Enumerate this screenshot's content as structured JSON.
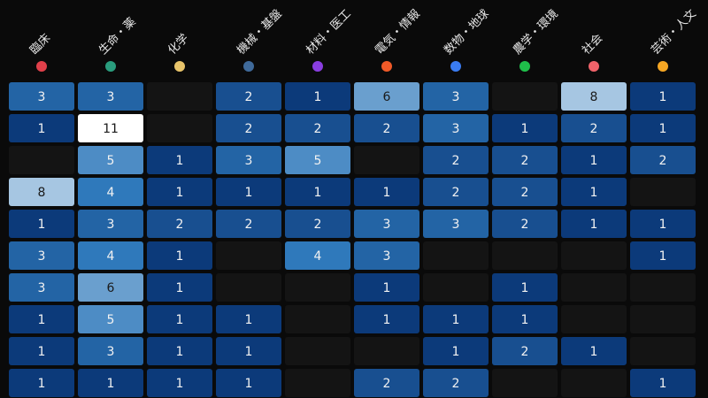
{
  "chart_data": {
    "type": "heatmap",
    "columns": [
      {
        "label": "臨床",
        "color": "#e0404a"
      },
      {
        "label": "生命・薬",
        "color": "#2a9d7e"
      },
      {
        "label": "化学",
        "color": "#e8c46a"
      },
      {
        "label": "機械・基盤",
        "color": "#3f6a9a"
      },
      {
        "label": "材料・医工",
        "color": "#8a3ee0"
      },
      {
        "label": "電気・情報",
        "color": "#f05a28"
      },
      {
        "label": "数物・地球",
        "color": "#3a7cf2"
      },
      {
        "label": "農学・環境",
        "color": "#1fbf4a"
      },
      {
        "label": "社会",
        "color": "#f0636a"
      },
      {
        "label": "芸術・人文",
        "color": "#f5a623"
      }
    ],
    "values": [
      [
        3,
        3,
        null,
        2,
        1,
        6,
        3,
        null,
        8,
        1
      ],
      [
        1,
        11,
        null,
        2,
        2,
        2,
        3,
        1,
        2,
        1
      ],
      [
        null,
        5,
        1,
        3,
        5,
        null,
        2,
        2,
        1,
        2
      ],
      [
        8,
        4,
        1,
        1,
        1,
        1,
        2,
        2,
        1,
        null
      ],
      [
        1,
        3,
        2,
        2,
        2,
        3,
        3,
        2,
        1,
        1
      ],
      [
        3,
        4,
        1,
        null,
        4,
        3,
        null,
        null,
        null,
        1
      ],
      [
        3,
        6,
        1,
        null,
        null,
        1,
        null,
        1,
        null,
        null
      ],
      [
        1,
        5,
        1,
        1,
        null,
        1,
        1,
        1,
        null,
        null
      ],
      [
        1,
        3,
        1,
        1,
        null,
        null,
        1,
        2,
        1,
        null
      ],
      [
        1,
        1,
        1,
        1,
        null,
        2,
        2,
        null,
        null,
        1
      ]
    ],
    "value_range": [
      1,
      11
    ],
    "colors": {
      "empty": "#141414",
      "low": "#0c3a7a",
      "mid": "#2f79bb",
      "high": "#ffffff",
      "text_dark": "#1a1a1a",
      "text_light": "#f2f2f2"
    }
  }
}
